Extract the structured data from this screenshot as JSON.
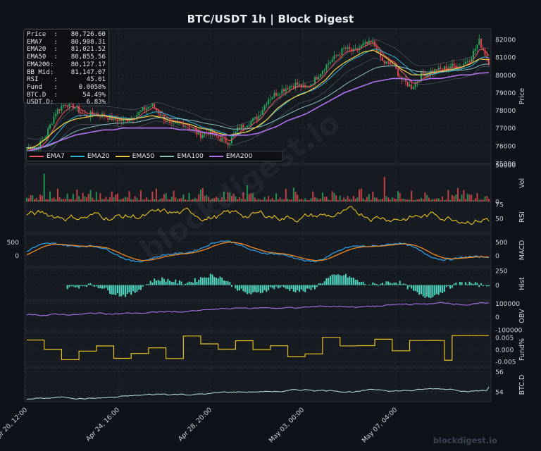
{
  "title": "BTC/USDT  1h  |  Block Digest",
  "stats": [
    {
      "k": "Price  :",
      "v": "80,726.60"
    },
    {
      "k": "EMA7   :",
      "v": "80,908.31"
    },
    {
      "k": "EMA20  :",
      "v": "81,021.52"
    },
    {
      "k": "EMA50  :",
      "v": "80,855.56"
    },
    {
      "k": "EMA200:",
      "v": "80,127.17"
    },
    {
      "k": "BB Mid:",
      "v": "81,147.07"
    },
    {
      "k": "RSI    :",
      "v": "45.01"
    },
    {
      "k": "Fund   :",
      "v": "0.0058%"
    },
    {
      "k": "BTC.D  :",
      "v": "54.49%"
    },
    {
      "k": "USDT.D:",
      "v": "6.83%"
    }
  ],
  "watermark": "blockdigest.io",
  "footer": "blockdigest.io",
  "colors": {
    "bg": "#0f1218",
    "panel": "#161a21",
    "grid": "#2c323c",
    "up": "#26a65b",
    "down": "#e0474c",
    "ema7": "#f0555f",
    "ema20": "#2fb4d8",
    "ema50": "#e8c845",
    "ema100": "#88c4c0",
    "ema200": "#b072f0",
    "macd": "#2f9be0",
    "signal": "#f08a24",
    "hist": "#4ed6c0",
    "obv": "#b072f0",
    "fund": "#e8c020",
    "btcd": "#a8d8d0"
  },
  "chart_data": {
    "type": "line",
    "x_ticks": [
      "Apr 20, 12:00",
      "Apr 24, 16:00",
      "Apr 28, 20:00",
      "May 03, 00:00",
      "May 07, 04:00"
    ],
    "legend": [
      "EMA7",
      "EMA20",
      "EMA50",
      "EMA100",
      "EMA200"
    ],
    "panels": [
      {
        "name": "price",
        "ylabel": "Price",
        "yticks": [
          75000,
          76000,
          77000,
          78000,
          79000,
          80000,
          81000,
          82000
        ],
        "ylim": [
          75000,
          82600
        ],
        "series": [
          {
            "name": "Close",
            "values": [
              75900,
              75800,
              76600,
              77900,
              78400,
              78200,
              77700,
              77800,
              77700,
              77500,
              77400,
              77600,
              78000,
              78300,
              77700,
              77100,
              77300,
              77000,
              76600,
              76800,
              76400,
              76200,
              77000,
              77300,
              77600,
              78600,
              79000,
              79300,
              79500,
              79200,
              79800,
              80500,
              81000,
              81500,
              81300,
              81700,
              81800,
              80700,
              80600,
              79700,
              79300,
              80000,
              80200,
              80300,
              80500,
              80500,
              80900,
              81900,
              80726
            ]
          },
          {
            "name": "EMA50",
            "values": [
              75800,
              76000,
              76400,
              76900,
              77300,
              77500,
              77600,
              77700,
              77700,
              77600,
              77500,
              77500,
              77600,
              77700,
              77600,
              77400,
              77300,
              77200,
              77000,
              76900,
              76700,
              76600,
              76700,
              76800,
              77100,
              77500,
              78100,
              78500,
              78800,
              79000,
              79300,
              79700,
              80300,
              80700,
              81000,
              81300,
              81400,
              81100,
              80700,
              80300,
              80000,
              80000,
              80100,
              80200,
              80300,
              80400,
              80600,
              80900,
              80855
            ]
          },
          {
            "name": "EMA200",
            "values": [
              75700,
              75800,
              76000,
              76200,
              76400,
              76600,
              76700,
              76800,
              76900,
              76900,
              77000,
              77000,
              77000,
              77000,
              77000,
              77000,
              76900,
              76900,
              76800,
              76700,
              76600,
              76600,
              76600,
              76600,
              76700,
              76900,
              77100,
              77400,
              77600,
              77800,
              78100,
              78400,
              78700,
              79000,
              79200,
              79400,
              79600,
              79700,
              79800,
              79800,
              79700,
              79700,
              79800,
              79800,
              79900,
              80000,
              80000,
              80100,
              80127
            ]
          }
        ]
      },
      {
        "name": "volume",
        "ylabel": "Vol",
        "yticks": [
          0,
          50000
        ],
        "ylim": [
          0,
          50000
        ]
      },
      {
        "name": "rsi",
        "ylabel": "RSI",
        "yticks": [
          50,
          75
        ],
        "ylim": [
          25,
          80
        ]
      },
      {
        "name": "macd",
        "ylabel": "MACD",
        "yticks": [
          0,
          500
        ],
        "ylim": [
          -400,
          800
        ]
      },
      {
        "name": "hist",
        "ylabel": "Hist",
        "yticks": [
          0,
          250
        ],
        "ylim": [
          -250,
          300
        ]
      },
      {
        "name": "obv",
        "ylabel": "OBV",
        "yticks": [
          -100000,
          0,
          100000
        ],
        "ylim": [
          -110000,
          120000
        ]
      },
      {
        "name": "fund",
        "ylabel": "Fund%",
        "yticks": [
          -0.005,
          0,
          0.005
        ],
        "ylim": [
          -0.007,
          0.007
        ]
      },
      {
        "name": "btcd",
        "ylabel": "BTC.D",
        "yticks": [
          54,
          56
        ],
        "ylim": [
          53,
          56.4
        ]
      }
    ]
  }
}
